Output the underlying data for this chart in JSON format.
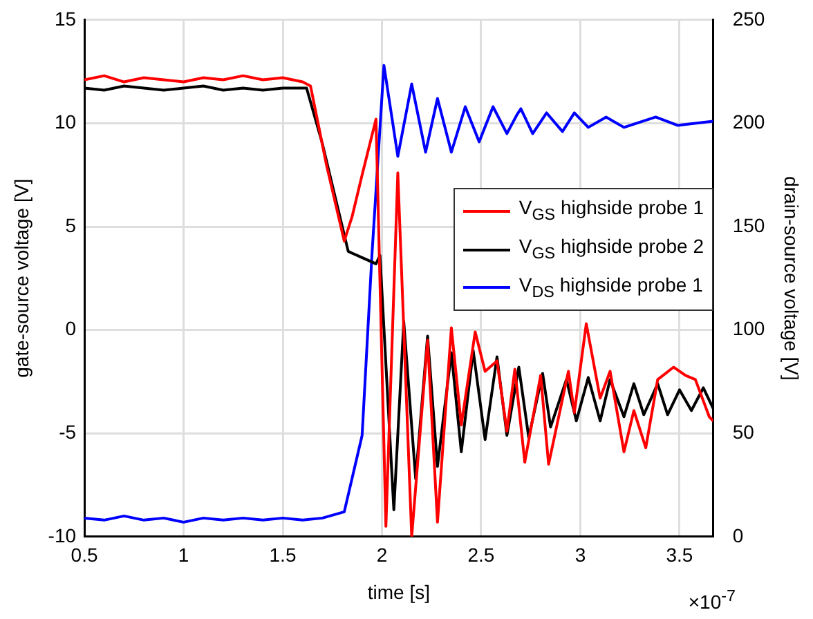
{
  "chart_data": {
    "type": "line",
    "xlabel": "time [s]",
    "ylabel": "gate-source voltage [V]",
    "y2label": "drain-source voltage [V]",
    "xlim": [
      0.5,
      3.67
    ],
    "xticks": [
      0.5,
      1,
      1.5,
      2,
      2.5,
      3,
      3.5
    ],
    "ylim": [
      -10,
      15
    ],
    "yticks": [
      -10,
      -5,
      0,
      5,
      10,
      15
    ],
    "y2lim": [
      0,
      250
    ],
    "y2ticks": [
      0,
      50,
      100,
      150,
      200,
      250
    ],
    "grid": true,
    "legend": "right",
    "line_style": "solid",
    "marker": "none",
    "annotations": [
      "×10$^{-7}$"
    ],
    "series": [
      {
        "name": "V$_{GS}$ highside probe 1",
        "color": "#ff0000",
        "x": [
          0.5,
          0.6,
          0.7,
          0.8,
          0.9,
          1.0,
          1.1,
          1.2,
          1.3,
          1.4,
          1.5,
          1.6,
          1.64,
          1.72,
          1.81,
          1.85,
          1.9,
          1.97,
          2.02,
          2.08,
          2.15,
          2.23,
          2.28,
          2.35,
          2.4,
          2.47,
          2.52,
          2.58,
          2.63,
          2.67,
          2.72,
          2.8,
          2.84,
          2.94,
          2.97,
          3.03,
          3.1,
          3.15,
          3.22,
          3.27,
          3.33,
          3.39,
          3.47,
          3.53,
          3.58,
          3.65,
          3.67
        ],
        "values": [
          12.1,
          12.3,
          12.0,
          12.2,
          12.1,
          12.0,
          12.2,
          12.1,
          12.3,
          12.1,
          12.2,
          12.0,
          11.8,
          8.0,
          4.3,
          5.5,
          7.5,
          10.2,
          -9.5,
          7.6,
          -10,
          -0.5,
          -9.3,
          0.1,
          -4.6,
          -0.1,
          -2,
          -1.5,
          -4.9,
          -1.9,
          -6.4,
          -2.2,
          -6.5,
          -2,
          -4,
          0.3,
          -3.3,
          -2,
          -5.9,
          -3.9,
          -5.7,
          -2.4,
          -1.8,
          -2.2,
          -2.4,
          -4.2,
          -4.4
        ]
      },
      {
        "name": "V$_{GS}$ highside probe 2",
        "color": "#000000",
        "x": [
          0.5,
          0.6,
          0.7,
          0.8,
          0.9,
          1.0,
          1.1,
          1.2,
          1.3,
          1.4,
          1.5,
          1.62,
          1.7,
          1.83,
          1.9,
          1.97,
          1.99,
          2.06,
          2.11,
          2.17,
          2.23,
          2.28,
          2.35,
          2.4,
          2.46,
          2.52,
          2.58,
          2.63,
          2.69,
          2.74,
          2.81,
          2.85,
          2.93,
          2.98,
          3.04,
          3.1,
          3.15,
          3.22,
          3.27,
          3.32,
          3.39,
          3.44,
          3.5,
          3.56,
          3.62,
          3.67
        ],
        "values": [
          11.7,
          11.6,
          11.8,
          11.7,
          11.6,
          11.7,
          11.8,
          11.6,
          11.7,
          11.6,
          11.7,
          11.7,
          9.0,
          3.8,
          3.5,
          3.2,
          3.6,
          -8.7,
          0.4,
          -7.2,
          -0.3,
          -6.6,
          -1.1,
          -5.9,
          -1,
          -5.3,
          -1.3,
          -5.1,
          -1.8,
          -5.2,
          -2.1,
          -4.7,
          -2.4,
          -4.4,
          -2.3,
          -4.4,
          -2.4,
          -4.2,
          -2.6,
          -4.1,
          -2.6,
          -4.1,
          -2.9,
          -3.9,
          -2.8,
          -3.8
        ]
      },
      {
        "name": "V$_{DS}$ highside probe 1",
        "color": "#0000ff",
        "axis": "y2",
        "x": [
          0.5,
          0.6,
          0.7,
          0.8,
          0.9,
          1.0,
          1.1,
          1.2,
          1.3,
          1.4,
          1.5,
          1.6,
          1.7,
          1.81,
          1.9,
          1.95,
          2.01,
          2.08,
          2.15,
          2.22,
          2.28,
          2.35,
          2.42,
          2.49,
          2.56,
          2.63,
          2.68,
          2.7,
          2.76,
          2.83,
          2.91,
          2.97,
          3.04,
          3.13,
          3.22,
          3.38,
          3.49,
          3.67
        ],
        "values": [
          9,
          8,
          10,
          8,
          9,
          7,
          9,
          8,
          9,
          8,
          9,
          8,
          9,
          12,
          49,
          137,
          228,
          184,
          219,
          186,
          212,
          186,
          208,
          191,
          208,
          195,
          204,
          207,
          195,
          205,
          196,
          205,
          198,
          203,
          198,
          203,
          199,
          201
        ]
      }
    ]
  }
}
